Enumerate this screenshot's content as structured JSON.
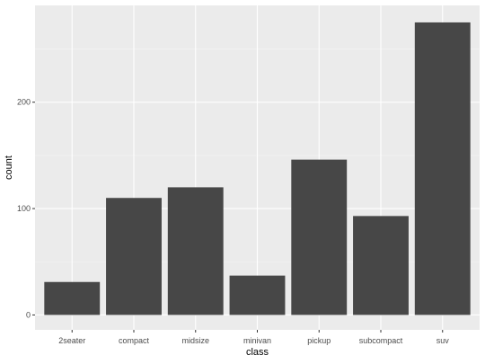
{
  "chart_data": {
    "type": "bar",
    "categories": [
      "2seater",
      "compact",
      "midsize",
      "minivan",
      "pickup",
      "subcompact",
      "suv"
    ],
    "values": [
      31,
      110,
      120,
      37,
      146,
      93,
      275
    ],
    "title": "",
    "xlabel": "class",
    "ylabel": "count",
    "ylim": [
      -14,
      291
    ],
    "yticks": [
      0,
      100,
      200
    ],
    "grid": true,
    "legend": "none",
    "colors": {
      "panel": "#ebebeb",
      "grid_major": "#ffffff",
      "grid_minor": "#f5f5f5",
      "bar": "#474747",
      "tick_text": "#4d4d4d",
      "axis_title": "#000000"
    }
  }
}
